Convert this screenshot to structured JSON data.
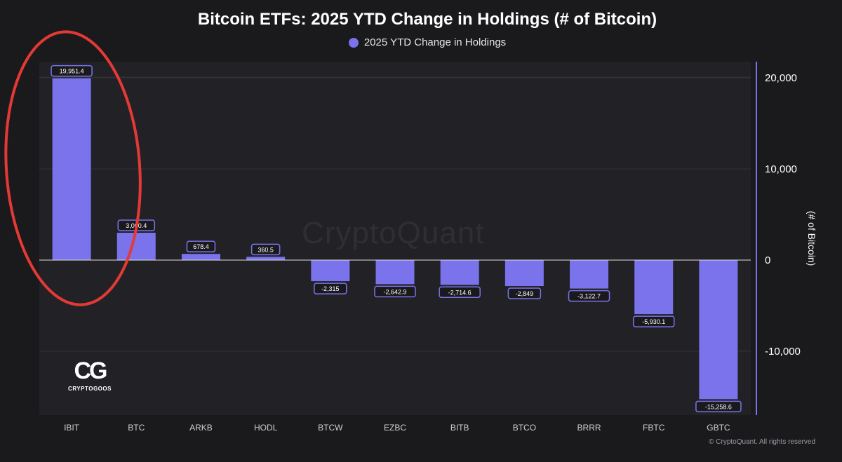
{
  "title": "Bitcoin ETFs: 2025 YTD Change in Holdings (# of Bitcoin)",
  "legend_label": "2025 YTD Change in Holdings",
  "watermark": "CryptoQuant",
  "logo": {
    "mark": "CG",
    "text": "CRYPTOGOOS"
  },
  "copyright": "© CryptoQuant. All rights reserved",
  "colors": {
    "bar": "#7a73ec",
    "background": "#1a1a1d",
    "plot": "#222226",
    "annotation": "#e53935"
  },
  "chart_data": {
    "type": "bar",
    "categories": [
      "IBIT",
      "BTC",
      "ARKB",
      "HODL",
      "BTCW",
      "EZBC",
      "BITB",
      "BTCO",
      "BRRR",
      "FBTC",
      "GBTC"
    ],
    "series": [
      {
        "name": "2025 YTD Change in Holdings",
        "values": [
          19951.4,
          3000.4,
          678.4,
          360.5,
          -2315,
          -2642.9,
          -2714.6,
          -2849,
          -3122.7,
          -5930.1,
          -15258.6
        ],
        "labels": [
          "19,951.4",
          "3,000.4",
          "678.4",
          "360.5",
          "-2,315",
          "-2,642.9",
          "-2,714.6",
          "-2,849",
          "-3,122.7",
          "-5,930.1",
          "-15,258.6"
        ]
      }
    ],
    "ylabel": "(# of Bitcoin)",
    "ylim": [
      -17000,
      21000
    ],
    "yticks": [
      20000,
      10000,
      0,
      -10000
    ],
    "ytick_labels": [
      "20,000",
      "10,000",
      "0",
      "-10,000"
    ],
    "grid": true,
    "y_axis_side": "right",
    "legend_position": "top-center",
    "annotation": "red ellipse around IBIT"
  }
}
